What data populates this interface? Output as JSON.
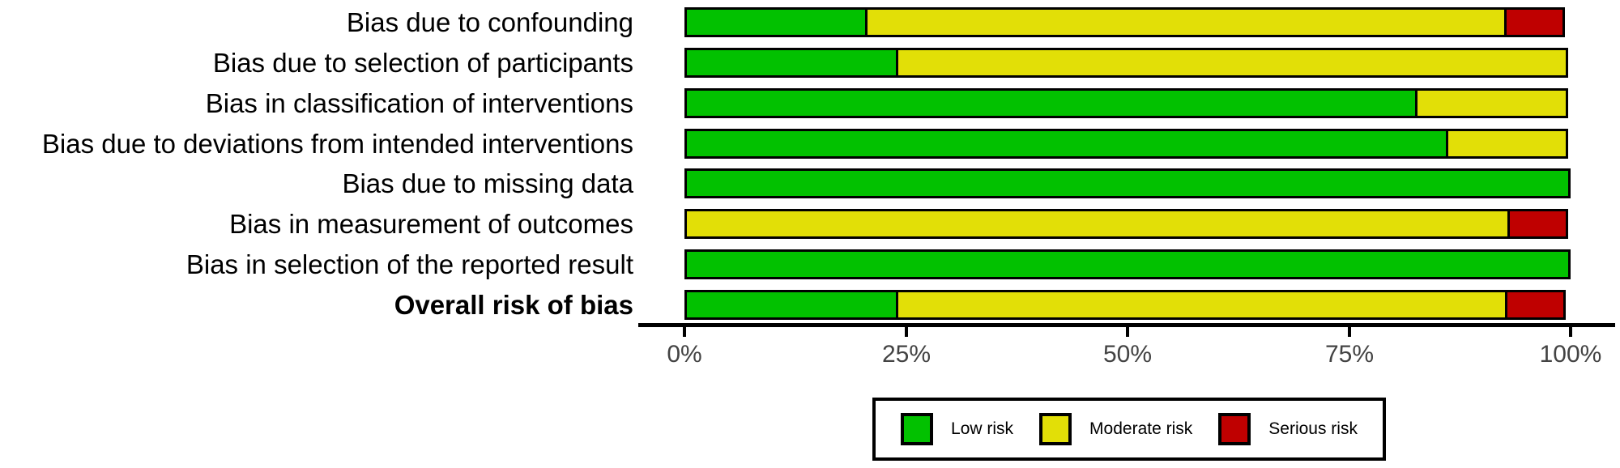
{
  "chart_data": {
    "type": "bar",
    "orientation": "horizontal_stacked",
    "title": "",
    "xlabel": "",
    "ylabel": "",
    "xlim": [
      0,
      100
    ],
    "x_ticks": [
      {
        "value": 0,
        "label": "0%"
      },
      {
        "value": 25,
        "label": "25%"
      },
      {
        "value": 50,
        "label": "50%"
      },
      {
        "value": 75,
        "label": "75%"
      },
      {
        "value": 100,
        "label": "100%"
      }
    ],
    "grid": false,
    "legend_position": "bottom",
    "categories": [
      {
        "label": "Bias due to confounding",
        "bold": false
      },
      {
        "label": "Bias due to selection of participants",
        "bold": false
      },
      {
        "label": "Bias in classification of interventions",
        "bold": false
      },
      {
        "label": "Bias due to deviations from intended interventions",
        "bold": false
      },
      {
        "label": "Bias due to missing data",
        "bold": false
      },
      {
        "label": "Bias in measurement of outcomes",
        "bold": false
      },
      {
        "label": "Bias in selection of the reported result",
        "bold": false
      },
      {
        "label": "Overall risk of bias",
        "bold": true
      }
    ],
    "series": [
      {
        "name": "Low risk",
        "color": "#02C100",
        "values": [
          20.69,
          24.14,
          82.76,
          86.21,
          100,
          0,
          100,
          24.14
        ]
      },
      {
        "name": "Moderate risk",
        "color": "#E2DF07",
        "values": [
          72.41,
          75.86,
          17.24,
          13.79,
          0,
          93.1,
          0,
          68.97
        ]
      },
      {
        "name": "Serious risk",
        "color": "#BF0000",
        "values": [
          6.9,
          0,
          0,
          0,
          0,
          6.9,
          0,
          6.9
        ]
      }
    ]
  },
  "style": {
    "segment_border_color": "#000000",
    "axis_color": "#000000",
    "tick_label_color": "#434343",
    "category_label_color": "#000000",
    "background_color": "#FFFFFF"
  },
  "legend": {
    "entries": [
      {
        "label": "Low risk",
        "color": "#02C100"
      },
      {
        "label": "Moderate risk",
        "color": "#E2DF07"
      },
      {
        "label": "Serious risk",
        "color": "#BF0000"
      }
    ]
  }
}
